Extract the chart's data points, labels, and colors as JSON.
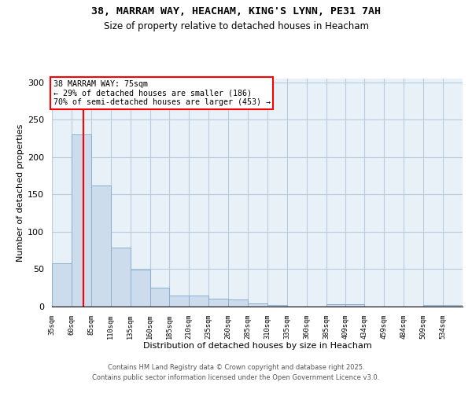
{
  "title1": "38, MARRAM WAY, HEACHAM, KING'S LYNN, PE31 7AH",
  "title2": "Size of property relative to detached houses in Heacham",
  "xlabel": "Distribution of detached houses by size in Heacham",
  "ylabel": "Number of detached properties",
  "bar_color": "#ccdcec",
  "bar_edge_color": "#8ab0cc",
  "grid_color": "#b8ccdc",
  "bg_color": "#e8f0f8",
  "red_line_x": 75,
  "annotation_title": "38 MARRAM WAY: 75sqm",
  "annotation_line1": "← 29% of detached houses are smaller (186)",
  "annotation_line2": "70% of semi-detached houses are larger (453) →",
  "footer1": "Contains HM Land Registry data © Crown copyright and database right 2025.",
  "footer2": "Contains public sector information licensed under the Open Government Licence v3.0.",
  "bins": [
    35,
    60,
    85,
    110,
    135,
    160,
    185,
    210,
    235,
    260,
    285,
    310,
    335,
    360,
    385,
    409,
    434,
    459,
    484,
    509,
    534,
    559
  ],
  "counts": [
    58,
    230,
    162,
    79,
    49,
    25,
    15,
    15,
    10,
    9,
    4,
    2,
    0,
    0,
    3,
    3,
    0,
    0,
    0,
    2,
    2
  ],
  "ylim": [
    0,
    305
  ],
  "yticks": [
    0,
    50,
    100,
    150,
    200,
    250,
    300
  ]
}
